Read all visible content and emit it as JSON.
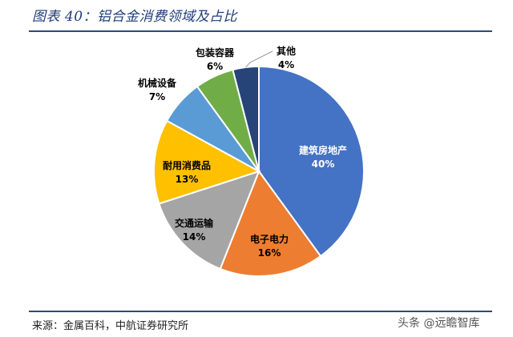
{
  "figure_title": "图表 40：铝合金消费领域及占比",
  "source": "来源：金属百科，中航证券研究所",
  "watermark": "头条 @远瞻智库",
  "chart_data": {
    "type": "pie",
    "title": "",
    "slices": [
      {
        "label": "建筑房地产",
        "value": 40,
        "pct": "40%",
        "color": "#4472C4"
      },
      {
        "label": "电子电力",
        "value": 16,
        "pct": "16%",
        "color": "#ED7D31"
      },
      {
        "label": "交通运输",
        "value": 14,
        "pct": "14%",
        "color": "#A5A5A5"
      },
      {
        "label": "耐用消费品",
        "value": 13,
        "pct": "13%",
        "color": "#FFC000"
      },
      {
        "label": "机械设备",
        "value": 7,
        "pct": "7%",
        "color": "#5B9BD5"
      },
      {
        "label": "包装容器",
        "value": 6,
        "pct": "6%",
        "color": "#70AD47"
      },
      {
        "label": "其他",
        "value": 4,
        "pct": "4%",
        "color": "#264478"
      }
    ]
  }
}
